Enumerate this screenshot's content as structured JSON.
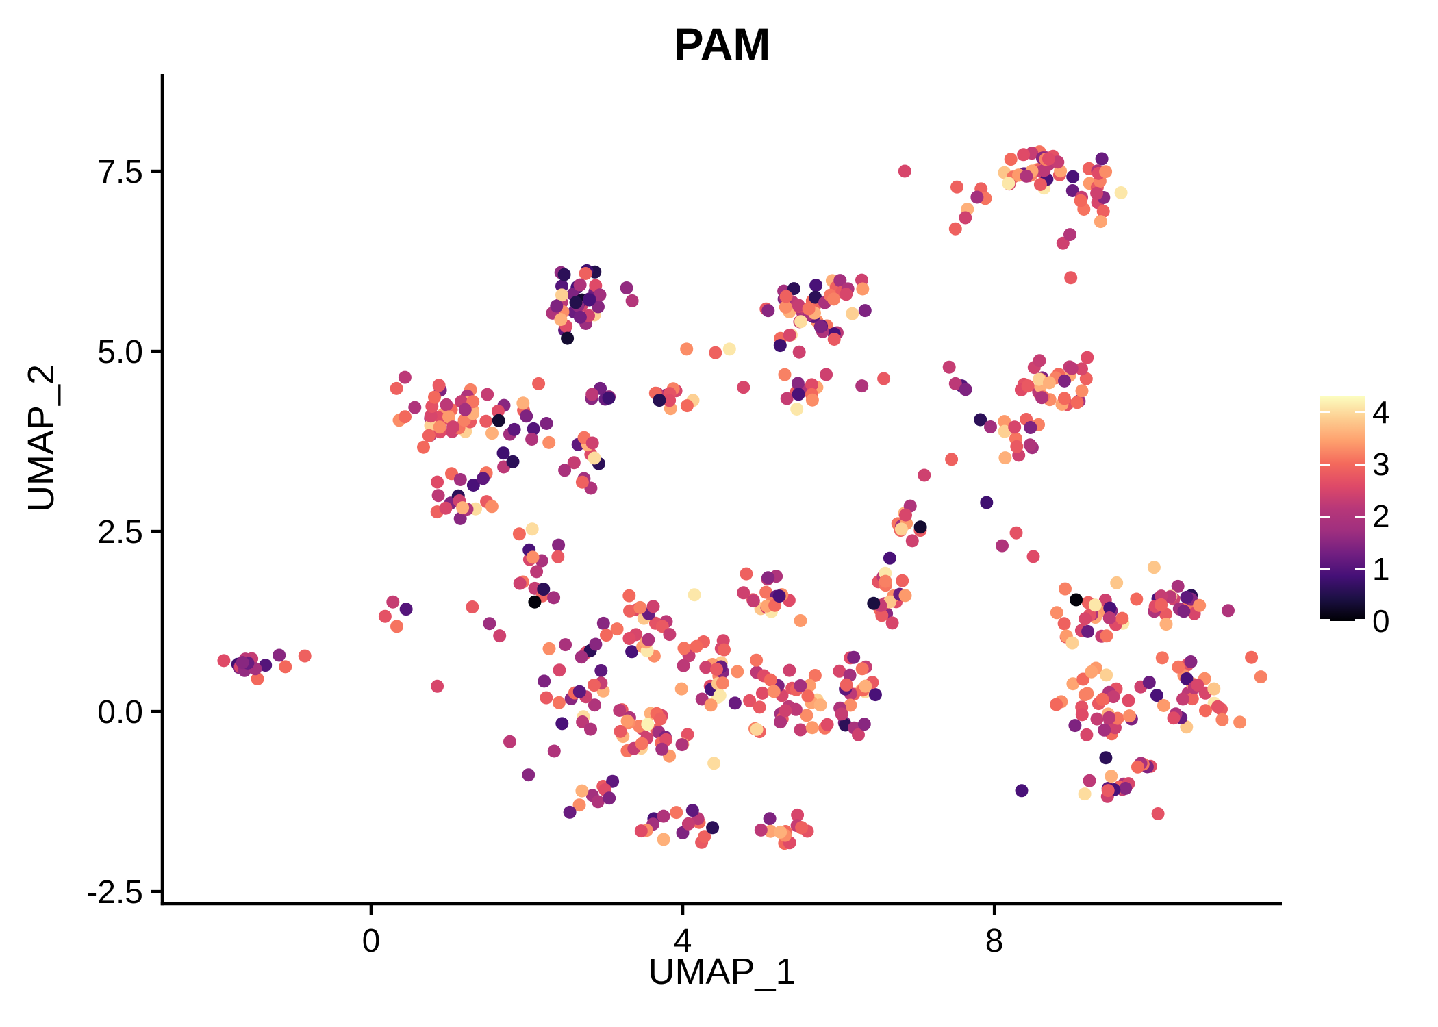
{
  "chart_data": {
    "type": "scatter",
    "title": "PAM",
    "xlabel": "UMAP_1",
    "ylabel": "UMAP_2",
    "xlim": [
      -2.68,
      11.69
    ],
    "ylim": [
      -2.67,
      8.85
    ],
    "x_tick_values": [
      0,
      4,
      8
    ],
    "x_tick_labels": [
      "0",
      "4",
      "8"
    ],
    "y_tick_values": [
      -2.5,
      0.0,
      2.5,
      5.0,
      7.5
    ],
    "y_tick_labels": [
      "-2.5",
      "0.0",
      "2.5",
      "5.0",
      "7.5"
    ],
    "grid": false,
    "legend_position": "right",
    "point_radius_px": 9.5,
    "colors": {
      "background": "#ffffff",
      "axis": "#000000",
      "text": "#000000"
    },
    "colorbar": {
      "tick_values": [
        0,
        1,
        2,
        3,
        4
      ],
      "tick_labels": [
        "0",
        "1",
        "2",
        "3",
        "4"
      ],
      "domain": [
        0,
        4.3
      ],
      "palette": "magma",
      "stops": [
        "#000004",
        "#1c1044",
        "#451077",
        "#721f81",
        "#9f2f7f",
        "#b73779",
        "#de4968",
        "#f4695c",
        "#fe9f6d",
        "#fdcd90",
        "#fcfdbf"
      ]
    },
    "value_cycles": {
      "hot": [
        2.8,
        3.2,
        2.3,
        3.5,
        2.0,
        2.6,
        3.0,
        1.5,
        2.4,
        3.3,
        0.9,
        2.7,
        3.8,
        2.2,
        3.1,
        1.2,
        2.5,
        3.4,
        2.9,
        4.1
      ],
      "warm": [
        3.0,
        2.6,
        3.3,
        2.2,
        3.6,
        2.9,
        2.4,
        3.1,
        1.8,
        2.8,
        3.4,
        2.0,
        3.9,
        2.5,
        3.2,
        1.4,
        2.7,
        3.5,
        2.3,
        3.0
      ],
      "mixed": [
        2.5,
        1.5,
        3.0,
        2.2,
        0.9,
        2.8,
        1.8,
        3.3,
        2.0,
        1.1,
        2.6,
        3.6,
        1.4,
        2.3,
        2.9,
        0.6,
        3.1,
        1.9,
        2.4,
        4.0
      ],
      "purply": [
        1.2,
        0.8,
        1.5,
        2.2,
        1.0,
        2.6,
        0.6,
        1.8,
        2.9,
        1.4,
        0.3,
        2.0,
        1.1,
        3.9,
        1.6,
        0.9,
        2.4,
        1.3,
        0.5,
        1.7
      ],
      "leftblob": [
        1.8,
        2.2,
        1.2,
        2.6,
        1.5,
        2.9,
        0.1,
        2.3,
        0.8,
        2.0,
        3.0,
        1.4,
        2.5,
        1.0,
        1.6
      ]
    },
    "clusters": [
      {
        "name": "far-left-blob",
        "cx": -1.58,
        "cy": 0.62,
        "rx": 0.3,
        "ry": 0.22,
        "n": 13,
        "seed": 11,
        "cycle": "leftblob"
      },
      {
        "name": "left-mid-main",
        "cx": 0.95,
        "cy": 4.15,
        "rx": 0.6,
        "ry": 0.5,
        "n": 42,
        "seed": 21,
        "cycle": "warm"
      },
      {
        "name": "left-mid-lower",
        "cx": 1.3,
        "cy": 3.1,
        "rx": 0.45,
        "ry": 0.42,
        "n": 20,
        "seed": 22,
        "cycle": "mixed"
      },
      {
        "name": "left-mid-right",
        "cx": 1.8,
        "cy": 3.8,
        "rx": 0.3,
        "ry": 0.5,
        "n": 12,
        "seed": 23,
        "cycle": "purply"
      },
      {
        "name": "left-mid-sparse",
        "cx": 2.6,
        "cy": 3.5,
        "rx": 0.45,
        "ry": 0.6,
        "n": 14,
        "seed": 24,
        "cycle": "mixed"
      },
      {
        "name": "top-middle",
        "cx": 2.65,
        "cy": 5.75,
        "rx": 0.32,
        "ry": 0.4,
        "n": 26,
        "seed": 31,
        "cycle": "purply"
      },
      {
        "name": "top-middle-low",
        "cx": 2.45,
        "cy": 5.45,
        "rx": 0.2,
        "ry": 0.2,
        "n": 6,
        "seed": 32,
        "cycle": "mixed"
      },
      {
        "name": "band-purple",
        "cx": 2.9,
        "cy": 4.42,
        "rx": 0.25,
        "ry": 0.14,
        "n": 7,
        "seed": 41,
        "cycle": "purply"
      },
      {
        "name": "band-orange",
        "cx": 4.0,
        "cy": 4.35,
        "rx": 0.38,
        "ry": 0.18,
        "n": 10,
        "seed": 42,
        "cycle": "warm"
      },
      {
        "name": "band-mixed",
        "cx": 5.55,
        "cy": 4.45,
        "rx": 0.38,
        "ry": 0.25,
        "n": 12,
        "seed": 43,
        "cycle": "hot"
      },
      {
        "name": "top-center",
        "cx": 5.55,
        "cy": 5.55,
        "rx": 0.5,
        "ry": 0.5,
        "n": 38,
        "seed": 51,
        "cycle": "mixed"
      },
      {
        "name": "top-center-up",
        "cx": 6.1,
        "cy": 5.85,
        "rx": 0.28,
        "ry": 0.3,
        "n": 12,
        "seed": 52,
        "cycle": "warm"
      },
      {
        "name": "top-right-main",
        "cx": 8.6,
        "cy": 7.5,
        "rx": 0.6,
        "ry": 0.3,
        "n": 36,
        "seed": 61,
        "cycle": "hot"
      },
      {
        "name": "top-right-lobe",
        "cx": 9.35,
        "cy": 7.25,
        "rx": 0.28,
        "ry": 0.45,
        "n": 16,
        "seed": 62,
        "cycle": "hot"
      },
      {
        "name": "top-right-left",
        "cx": 7.8,
        "cy": 7.15,
        "rx": 0.2,
        "ry": 0.28,
        "n": 5,
        "seed": 63,
        "cycle": "warm"
      },
      {
        "name": "right-mid-main",
        "cx": 8.75,
        "cy": 4.55,
        "rx": 0.5,
        "ry": 0.42,
        "n": 30,
        "seed": 71,
        "cycle": "warm"
      },
      {
        "name": "right-mid-low",
        "cx": 8.35,
        "cy": 3.8,
        "rx": 0.32,
        "ry": 0.3,
        "n": 12,
        "seed": 72,
        "cycle": "warm"
      },
      {
        "name": "right-bottom-a",
        "cx": 9.3,
        "cy": 1.35,
        "rx": 0.5,
        "ry": 0.45,
        "n": 24,
        "seed": 81,
        "cycle": "hot"
      },
      {
        "name": "right-bottom-b",
        "cx": 10.3,
        "cy": 1.55,
        "rx": 0.55,
        "ry": 0.35,
        "n": 20,
        "seed": 82,
        "cycle": "mixed"
      },
      {
        "name": "right-bottom-c",
        "cx": 9.3,
        "cy": 0.1,
        "rx": 0.55,
        "ry": 0.5,
        "n": 30,
        "seed": 83,
        "cycle": "warm"
      },
      {
        "name": "right-bottom-d",
        "cx": 10.4,
        "cy": 0.25,
        "rx": 0.6,
        "ry": 0.5,
        "n": 28,
        "seed": 84,
        "cycle": "hot"
      },
      {
        "name": "right-bottom-e",
        "cx": 9.6,
        "cy": -0.95,
        "rx": 0.5,
        "ry": 0.35,
        "n": 18,
        "seed": 85,
        "cycle": "mixed"
      },
      {
        "name": "central-arm-ul",
        "cx": 2.1,
        "cy": 1.9,
        "rx": 0.35,
        "ry": 0.6,
        "n": 15,
        "seed": 91,
        "cycle": "mixed"
      },
      {
        "name": "central-left",
        "cx": 2.6,
        "cy": 0.35,
        "rx": 0.45,
        "ry": 0.6,
        "n": 22,
        "seed": 92,
        "cycle": "mixed"
      },
      {
        "name": "central-c",
        "cx": 3.4,
        "cy": 1.1,
        "rx": 0.5,
        "ry": 0.5,
        "n": 24,
        "seed": 93,
        "cycle": "hot"
      },
      {
        "name": "central-d",
        "cx": 3.6,
        "cy": -0.3,
        "rx": 0.5,
        "ry": 0.45,
        "n": 28,
        "seed": 94,
        "cycle": "warm"
      },
      {
        "name": "central-core",
        "cx": 4.5,
        "cy": 0.5,
        "rx": 0.55,
        "ry": 0.6,
        "n": 30,
        "seed": 95,
        "cycle": "hot"
      },
      {
        "name": "central-f",
        "cx": 5.4,
        "cy": 0.1,
        "rx": 0.5,
        "ry": 0.55,
        "n": 30,
        "seed": 96,
        "cycle": "warm"
      },
      {
        "name": "central-g",
        "cx": 5.1,
        "cy": 1.55,
        "rx": 0.45,
        "ry": 0.4,
        "n": 20,
        "seed": 97,
        "cycle": "hot"
      },
      {
        "name": "central-h",
        "cx": 6.2,
        "cy": 0.3,
        "rx": 0.45,
        "ry": 0.55,
        "n": 25,
        "seed": 98,
        "cycle": "mixed"
      },
      {
        "name": "central-ridge",
        "cx": 6.6,
        "cy": 1.7,
        "rx": 0.35,
        "ry": 0.5,
        "n": 18,
        "seed": 99,
        "cycle": "hot"
      },
      {
        "name": "central-ridge-top",
        "cx": 6.9,
        "cy": 2.6,
        "rx": 0.3,
        "ry": 0.3,
        "n": 10,
        "seed": 100,
        "cycle": "warm"
      },
      {
        "name": "bottom-arc-a",
        "cx": 4.0,
        "cy": -1.55,
        "rx": 0.6,
        "ry": 0.28,
        "n": 15,
        "seed": 101,
        "cycle": "mixed"
      },
      {
        "name": "bottom-arc-b",
        "cx": 5.3,
        "cy": -1.7,
        "rx": 0.5,
        "ry": 0.25,
        "n": 13,
        "seed": 102,
        "cycle": "warm"
      },
      {
        "name": "bottom-arc-c",
        "cx": 2.95,
        "cy": -1.1,
        "rx": 0.3,
        "ry": 0.25,
        "n": 8,
        "seed": 103,
        "cycle": "mixed"
      }
    ],
    "singles": [
      [
        -1.18,
        0.78,
        1.5
      ],
      [
        -1.1,
        0.62,
        3.0
      ],
      [
        -0.85,
        0.77,
        2.9
      ],
      [
        0.18,
        1.32,
        2.7
      ],
      [
        0.33,
        1.18,
        3.1
      ],
      [
        0.45,
        1.42,
        1.0
      ],
      [
        0.28,
        1.52,
        2.3
      ],
      [
        0.85,
        0.35,
        2.5
      ],
      [
        1.3,
        1.45,
        2.8
      ],
      [
        1.52,
        1.22,
        1.7
      ],
      [
        1.65,
        1.05,
        2.4
      ],
      [
        2.1,
        1.52,
        0.05
      ],
      [
        3.7,
        4.32,
        0.55
      ],
      [
        2.52,
        5.18,
        0.3
      ],
      [
        3.28,
        5.88,
        1.6
      ],
      [
        3.35,
        5.7,
        2.1
      ],
      [
        4.42,
        4.98,
        2.9
      ],
      [
        4.6,
        5.03,
        4.1
      ],
      [
        4.05,
        5.03,
        3.3
      ],
      [
        5.25,
        5.08,
        0.8
      ],
      [
        2.15,
        4.55,
        2.9
      ],
      [
        1.95,
        4.28,
        3.6
      ],
      [
        4.78,
        4.5,
        2.5
      ],
      [
        6.3,
        4.52,
        2.0
      ],
      [
        6.58,
        4.62,
        2.8
      ],
      [
        7.42,
        4.78,
        2.3
      ],
      [
        7.58,
        4.52,
        1.0
      ],
      [
        7.5,
        4.55,
        2.2
      ],
      [
        7.63,
        4.47,
        1.4
      ],
      [
        7.82,
        4.05,
        0.6
      ],
      [
        7.95,
        3.95,
        1.8
      ],
      [
        7.5,
        6.7,
        2.9
      ],
      [
        6.85,
        7.5,
        2.5
      ],
      [
        7.52,
        7.28,
        2.9
      ],
      [
        8.98,
        6.02,
        2.8
      ],
      [
        8.88,
        6.5,
        2.4
      ],
      [
        8.97,
        6.62,
        2.1
      ],
      [
        7.45,
        3.5,
        2.9
      ],
      [
        7.1,
        3.28,
        2.4
      ],
      [
        7.9,
        2.9,
        0.8
      ],
      [
        8.1,
        2.3,
        2.0
      ],
      [
        8.28,
        2.48,
        2.7
      ],
      [
        9.05,
        1.55,
        0.05
      ],
      [
        9.0,
        0.95,
        3.9
      ],
      [
        10.05,
        2.0,
        3.8
      ],
      [
        8.5,
        2.15,
        2.6
      ],
      [
        11.0,
        1.4,
        2.0
      ],
      [
        11.3,
        0.75,
        3.0
      ],
      [
        11.42,
        0.48,
        3.2
      ],
      [
        8.35,
        -1.1,
        0.9
      ],
      [
        10.1,
        -1.42,
        2.7
      ],
      [
        11.15,
        -0.15,
        3.3
      ],
      [
        6.45,
        1.5,
        0.4
      ],
      [
        7.05,
        2.56,
        0.3
      ],
      [
        1.78,
        -0.42,
        2.2
      ],
      [
        2.02,
        -0.88,
        1.5
      ],
      [
        3.55,
        -0.18,
        4.2
      ],
      [
        4.15,
        1.62,
        4.1
      ],
      [
        4.4,
        -0.72,
        4.0
      ],
      [
        4.95,
        -0.25,
        3.95
      ],
      [
        2.35,
        -0.55,
        2.0
      ],
      [
        2.55,
        -1.4,
        1.2
      ]
    ]
  }
}
